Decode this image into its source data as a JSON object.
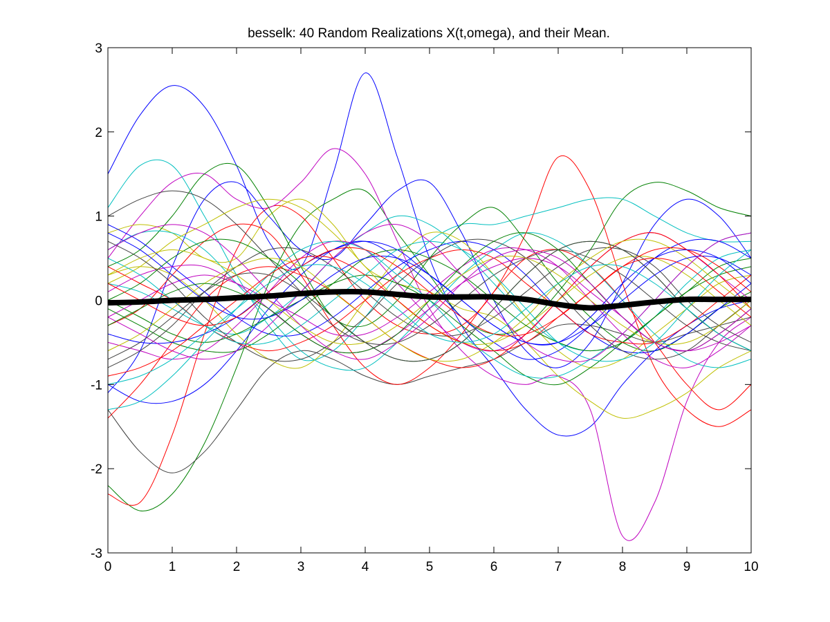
{
  "chart_data": {
    "type": "line",
    "title": "besselk: 40 Random Realizations X(t,omega), and their Mean.",
    "xlabel": "",
    "ylabel": "",
    "xlim": [
      0,
      10
    ],
    "ylim": [
      -3,
      3
    ],
    "xticks": [
      "0",
      "1",
      "2",
      "3",
      "4",
      "5",
      "6",
      "7",
      "8",
      "9",
      "10"
    ],
    "yticks": [
      "-3",
      "-2",
      "-1",
      "0",
      "1",
      "2",
      "3"
    ],
    "grid": false,
    "legend": "none",
    "realization_colors": [
      "#0000ff",
      "#008000",
      "#ff0000",
      "#00bfbf",
      "#bf00bf",
      "#bfbf00",
      "#404040"
    ],
    "mean_color": "#000000",
    "x": [
      0,
      0.5,
      1,
      1.5,
      2,
      2.5,
      3,
      3.5,
      4,
      4.5,
      5,
      5.5,
      6,
      6.5,
      7,
      7.5,
      8,
      8.5,
      9,
      9.5,
      10
    ],
    "series": [
      {
        "values": [
          1.5,
          2.2,
          2.55,
          2.3,
          1.6,
          0.7,
          0.4,
          1.5,
          2.7,
          1.7,
          0.5,
          -0.3,
          -0.8,
          -1.3,
          -1.6,
          -1.5,
          -1.0,
          -0.6,
          -0.3,
          -0.1,
          0.0
        ]
      },
      {
        "values": [
          -2.2,
          -2.5,
          -2.3,
          -1.7,
          -0.8,
          0.2,
          0.9,
          1.2,
          1.3,
          0.8,
          0.3,
          -0.2,
          -0.4,
          -0.3,
          0.1,
          0.6,
          1.2,
          1.4,
          1.3,
          1.1,
          1.0
        ]
      },
      {
        "values": [
          -2.3,
          -2.4,
          -1.6,
          -0.4,
          0.6,
          1.1,
          1.0,
          0.5,
          0.0,
          -0.3,
          -0.4,
          -0.3,
          0.1,
          0.8,
          1.7,
          1.3,
          0.2,
          -0.8,
          -1.3,
          -1.5,
          -1.3
        ]
      },
      {
        "values": [
          1.1,
          1.6,
          1.6,
          1.0,
          0.3,
          -0.3,
          -0.7,
          -0.6,
          -0.2,
          0.3,
          0.7,
          0.9,
          0.9,
          1.0,
          1.1,
          1.2,
          1.2,
          1.0,
          0.8,
          0.7,
          0.7
        ]
      },
      {
        "values": [
          0.5,
          1.0,
          1.4,
          1.5,
          1.2,
          1.1,
          1.4,
          1.8,
          1.5,
          0.7,
          -0.1,
          -0.6,
          -0.9,
          -1.0,
          -0.9,
          -1.3,
          -2.8,
          -2.4,
          -1.2,
          -0.5,
          -0.2
        ]
      },
      {
        "values": [
          0.8,
          0.9,
          0.8,
          0.5,
          0.5,
          1.0,
          1.2,
          0.9,
          0.4,
          0.2,
          0.1,
          -0.1,
          -0.2,
          -0.5,
          -0.9,
          -1.2,
          -1.4,
          -1.3,
          -1.1,
          -0.8,
          -0.6
        ]
      },
      {
        "values": [
          -1.3,
          -1.8,
          -2.05,
          -1.8,
          -1.3,
          -0.8,
          -0.6,
          -0.7,
          -0.9,
          -1.0,
          -0.9,
          -0.8,
          -0.7,
          -0.5,
          -0.3,
          -0.3,
          -0.4,
          -0.5,
          -0.4,
          -0.3,
          -0.2
        ]
      },
      {
        "values": [
          -1.1,
          -0.6,
          0.4,
          1.2,
          1.4,
          1.0,
          0.6,
          0.5,
          0.9,
          1.3,
          1.4,
          0.8,
          0.0,
          -0.6,
          -0.8,
          -0.5,
          0.2,
          0.9,
          1.2,
          1.0,
          0.5
        ]
      },
      {
        "values": [
          0.4,
          0.6,
          1.0,
          1.5,
          1.6,
          1.1,
          0.4,
          -0.2,
          -0.3,
          0.0,
          0.5,
          0.9,
          1.1,
          0.7,
          0.2,
          -0.2,
          -0.5,
          -0.6,
          -0.4,
          -0.1,
          0.1
        ]
      },
      {
        "values": [
          -0.3,
          -0.1,
          0.3,
          0.7,
          0.9,
          0.8,
          0.3,
          -0.3,
          -0.8,
          -1.0,
          -0.8,
          -0.4,
          0.1,
          0.5,
          0.6,
          0.4,
          0.0,
          -0.5,
          -1.0,
          -1.3,
          -1.0
        ]
      },
      {
        "values": [
          0.2,
          0.1,
          -0.1,
          -0.3,
          -0.4,
          -0.2,
          0.1,
          0.5,
          0.8,
          1.0,
          0.9,
          0.6,
          0.2,
          -0.2,
          -0.5,
          -0.6,
          -0.5,
          -0.2,
          0.2,
          0.5,
          0.6
        ]
      },
      {
        "values": [
          -0.5,
          -0.6,
          -0.7,
          -0.6,
          -0.3,
          0.1,
          0.5,
          0.7,
          0.6,
          0.2,
          -0.2,
          -0.5,
          -0.6,
          -0.4,
          0.0,
          0.4,
          0.7,
          0.8,
          0.6,
          0.3,
          0.0
        ]
      },
      {
        "values": [
          0.3,
          0.4,
          0.3,
          0.0,
          -0.4,
          -0.7,
          -0.8,
          -0.5,
          0.0,
          0.5,
          0.8,
          0.7,
          0.3,
          -0.2,
          -0.6,
          -0.8,
          -0.7,
          -0.4,
          -0.1,
          0.2,
          0.3
        ]
      },
      {
        "values": [
          1.0,
          1.2,
          1.3,
          1.2,
          0.9,
          0.5,
          0.1,
          -0.3,
          -0.5,
          -0.5,
          -0.3,
          0.0,
          0.3,
          0.5,
          0.6,
          0.5,
          0.3,
          0.0,
          -0.3,
          -0.5,
          -0.6
        ]
      },
      {
        "values": [
          -1.0,
          -1.2,
          -1.2,
          -1.0,
          -0.6,
          -0.1,
          0.3,
          0.6,
          0.7,
          0.5,
          0.2,
          -0.2,
          -0.5,
          -0.7,
          -0.6,
          -0.3,
          0.1,
          0.5,
          0.7,
          0.7,
          0.5
        ]
      },
      {
        "values": [
          0.0,
          -0.2,
          -0.4,
          -0.5,
          -0.4,
          -0.2,
          0.0,
          0.2,
          0.3,
          0.2,
          0.0,
          -0.3,
          -0.6,
          -0.9,
          -1.0,
          -0.8,
          -0.5,
          -0.2,
          0.1,
          0.3,
          0.4
        ]
      },
      {
        "values": [
          -1.4,
          -1.0,
          -0.5,
          0.0,
          0.3,
          0.4,
          0.3,
          0.1,
          -0.2,
          -0.5,
          -0.7,
          -0.8,
          -0.7,
          -0.4,
          0.0,
          0.4,
          0.7,
          0.8,
          0.6,
          0.3,
          -0.1
        ]
      },
      {
        "values": [
          0.6,
          0.8,
          0.8,
          0.6,
          0.2,
          -0.2,
          -0.6,
          -0.8,
          -0.8,
          -0.5,
          -0.1,
          0.3,
          0.6,
          0.8,
          0.7,
          0.4,
          0.0,
          -0.4,
          -0.7,
          -0.8,
          -0.7
        ]
      },
      {
        "values": [
          -0.2,
          0.0,
          0.2,
          0.3,
          0.2,
          0.0,
          -0.2,
          -0.4,
          -0.4,
          -0.2,
          0.1,
          0.4,
          0.6,
          0.6,
          0.4,
          0.0,
          -0.4,
          -0.7,
          -0.8,
          -0.6,
          -0.3
        ]
      },
      {
        "values": [
          0.2,
          0.4,
          0.7,
          0.9,
          1.1,
          1.2,
          1.1,
          0.8,
          0.4,
          0.0,
          -0.3,
          -0.5,
          -0.5,
          -0.3,
          0.0,
          0.3,
          0.5,
          0.5,
          0.3,
          0.0,
          -0.3
        ]
      },
      {
        "values": [
          -0.8,
          -0.6,
          -0.3,
          0.1,
          0.4,
          0.6,
          0.6,
          0.4,
          0.1,
          -0.2,
          -0.4,
          -0.4,
          -0.2,
          0.1,
          0.4,
          0.6,
          0.6,
          0.4,
          0.0,
          -0.3,
          -0.5
        ]
      },
      {
        "values": [
          0.9,
          0.7,
          0.4,
          0.1,
          -0.2,
          -0.4,
          -0.4,
          -0.2,
          0.1,
          0.4,
          0.6,
          0.7,
          0.6,
          0.3,
          -0.1,
          -0.4,
          -0.6,
          -0.6,
          -0.4,
          -0.1,
          0.2
        ]
      },
      {
        "values": [
          -0.1,
          -0.3,
          -0.5,
          -0.6,
          -0.6,
          -0.4,
          -0.1,
          0.2,
          0.5,
          0.6,
          0.5,
          0.3,
          0.0,
          -0.3,
          -0.5,
          -0.6,
          -0.5,
          -0.2,
          0.1,
          0.4,
          0.5
        ]
      },
      {
        "values": [
          0.4,
          0.2,
          0.0,
          -0.3,
          -0.5,
          -0.6,
          -0.5,
          -0.3,
          0.0,
          0.3,
          0.5,
          0.6,
          0.5,
          0.2,
          -0.1,
          -0.4,
          -0.5,
          -0.5,
          -0.3,
          0.0,
          0.3
        ]
      },
      {
        "values": [
          -1.3,
          -1.2,
          -0.9,
          -0.5,
          -0.1,
          0.3,
          0.6,
          0.7,
          0.6,
          0.3,
          0.0,
          -0.4,
          -0.7,
          -0.9,
          -0.9,
          -0.7,
          -0.4,
          0.0,
          0.4,
          0.7,
          0.8
        ]
      },
      {
        "values": [
          0.1,
          0.3,
          0.4,
          0.4,
          0.2,
          -0.1,
          -0.4,
          -0.6,
          -0.6,
          -0.4,
          -0.1,
          0.2,
          0.4,
          0.5,
          0.4,
          0.1,
          -0.2,
          -0.5,
          -0.6,
          -0.5,
          -0.3
        ]
      },
      {
        "values": [
          -0.6,
          -0.4,
          -0.1,
          0.2,
          0.4,
          0.5,
          0.4,
          0.1,
          -0.2,
          -0.5,
          -0.7,
          -0.7,
          -0.5,
          -0.2,
          0.2,
          0.5,
          0.7,
          0.7,
          0.5,
          0.2,
          -0.1
        ]
      },
      {
        "values": [
          0.7,
          0.5,
          0.2,
          -0.2,
          -0.5,
          -0.7,
          -0.7,
          -0.5,
          -0.2,
          0.2,
          0.5,
          0.7,
          0.7,
          0.5,
          0.1,
          -0.3,
          -0.6,
          -0.7,
          -0.6,
          -0.3,
          0.0
        ]
      },
      {
        "values": [
          -0.4,
          -0.5,
          -0.5,
          -0.4,
          -0.2,
          0.1,
          0.4,
          0.6,
          0.7,
          0.6,
          0.3,
          0.0,
          -0.3,
          -0.5,
          -0.5,
          -0.3,
          0.0,
          0.3,
          0.5,
          0.5,
          0.3
        ]
      },
      {
        "values": [
          0.0,
          0.2,
          0.5,
          0.7,
          0.7,
          0.5,
          0.2,
          -0.2,
          -0.5,
          -0.7,
          -0.7,
          -0.5,
          -0.1,
          0.3,
          0.6,
          0.7,
          0.6,
          0.3,
          -0.1,
          -0.4,
          -0.6
        ]
      },
      {
        "values": [
          -0.9,
          -0.8,
          -0.6,
          -0.3,
          0.0,
          0.3,
          0.5,
          0.5,
          0.3,
          0.0,
          -0.3,
          -0.5,
          -0.6,
          -0.5,
          -0.2,
          0.1,
          0.4,
          0.6,
          0.6,
          0.4,
          0.1
        ]
      },
      {
        "values": [
          0.5,
          0.3,
          0.0,
          -0.3,
          -0.5,
          -0.5,
          -0.3,
          0.0,
          0.3,
          0.6,
          0.7,
          0.6,
          0.3,
          -0.1,
          -0.5,
          -0.7,
          -0.7,
          -0.5,
          -0.1,
          0.3,
          0.6
        ]
      },
      {
        "values": [
          -0.2,
          -0.4,
          -0.6,
          -0.7,
          -0.6,
          -0.3,
          0.1,
          0.5,
          0.8,
          0.9,
          0.7,
          0.3,
          -0.1,
          -0.5,
          -0.7,
          -0.7,
          -0.4,
          0.0,
          0.4,
          0.7,
          0.8
        ]
      },
      {
        "values": [
          0.3,
          0.5,
          0.6,
          0.5,
          0.3,
          0.0,
          -0.3,
          -0.5,
          -0.5,
          -0.3,
          0.0,
          0.3,
          0.5,
          0.5,
          0.3,
          0.0,
          -0.3,
          -0.5,
          -0.5,
          -0.3,
          0.0
        ]
      },
      {
        "values": [
          -0.7,
          -0.5,
          -0.2,
          0.1,
          0.3,
          0.3,
          0.1,
          -0.2,
          -0.5,
          -0.7,
          -0.7,
          -0.5,
          -0.1,
          0.3,
          0.6,
          0.7,
          0.6,
          0.3,
          -0.1,
          -0.4,
          -0.6
        ]
      },
      {
        "values": [
          0.8,
          0.6,
          0.3,
          0.0,
          -0.2,
          -0.2,
          0.0,
          0.3,
          0.5,
          0.5,
          0.3,
          0.0,
          -0.3,
          -0.5,
          -0.5,
          -0.2,
          0.2,
          0.5,
          0.6,
          0.5,
          0.2
        ]
      },
      {
        "values": [
          -0.3,
          -0.1,
          0.1,
          0.2,
          0.1,
          -0.1,
          -0.4,
          -0.6,
          -0.6,
          -0.4,
          0.0,
          0.4,
          0.7,
          0.8,
          0.6,
          0.2,
          -0.2,
          -0.5,
          -0.6,
          -0.4,
          -0.1
        ]
      },
      {
        "values": [
          0.2,
          0.0,
          -0.2,
          -0.3,
          -0.2,
          0.1,
          0.4,
          0.6,
          0.6,
          0.4,
          0.1,
          -0.2,
          -0.4,
          -0.4,
          -0.2,
          0.1,
          0.4,
          0.5,
          0.4,
          0.1,
          -0.2
        ]
      },
      {
        "values": [
          -1.0,
          -0.9,
          -0.7,
          -0.4,
          -0.1,
          0.2,
          0.4,
          0.4,
          0.2,
          -0.1,
          -0.4,
          -0.5,
          -0.4,
          -0.1,
          0.2,
          0.4,
          0.4,
          0.2,
          -0.1,
          -0.4,
          -0.6
        ]
      },
      {
        "values": [
          0.6,
          0.8,
          0.9,
          0.8,
          0.5,
          0.1,
          -0.3,
          -0.6,
          -0.7,
          -0.5,
          -0.2,
          0.2,
          0.5,
          0.6,
          0.5,
          0.2,
          -0.2,
          -0.5,
          -0.6,
          -0.4,
          -0.1
        ]
      }
    ],
    "mean": [
      -0.03,
      -0.02,
      0.0,
      0.01,
      0.03,
      0.05,
      0.08,
      0.1,
      0.1,
      0.07,
      0.04,
      0.04,
      0.04,
      0.01,
      -0.05,
      -0.09,
      -0.06,
      -0.02,
      0.01,
      0.01,
      0.01
    ]
  }
}
